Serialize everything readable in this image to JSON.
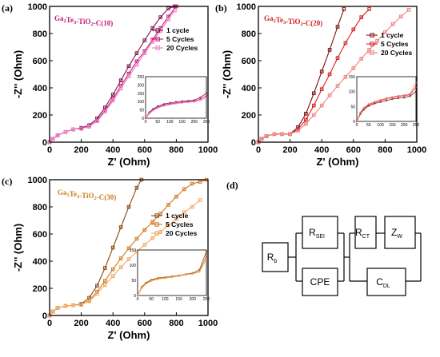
{
  "chart_data": [
    {
      "type": "line",
      "panel": "(a)",
      "sample": "Ga2Te3-TiO2-C(10)",
      "sample_parts": {
        "p1": "Ga",
        "s1": "2",
        "p2": "Te",
        "s2": "3",
        "p3": "-TiO",
        "s3": "2",
        "p4": "-C(10)"
      },
      "xlabel": "Z' (Ohm)",
      "ylabel": "-Z'' (Ohm)",
      "xlim": [
        0,
        1000
      ],
      "ylim": [
        0,
        1000
      ],
      "xticks": [
        0,
        200,
        400,
        600,
        800,
        1000
      ],
      "yticks": [
        0,
        200,
        400,
        600,
        800,
        1000
      ],
      "legend_position": "top-right",
      "series": [
        {
          "name": "1 cycle",
          "color": "#7b1450",
          "x": [
            0,
            20,
            50,
            100,
            150,
            200,
            250,
            300,
            350,
            400,
            450,
            500,
            550,
            600,
            650,
            700,
            750,
            790
          ],
          "y": [
            0,
            25,
            50,
            75,
            95,
            105,
            125,
            175,
            255,
            350,
            455,
            560,
            655,
            750,
            840,
            920,
            985,
            1000
          ]
        },
        {
          "name": "5 Cycles",
          "color": "#c21a74",
          "x": [
            0,
            20,
            50,
            100,
            150,
            200,
            250,
            300,
            350,
            400,
            450,
            500,
            550,
            600,
            650,
            700,
            750,
            800
          ],
          "y": [
            0,
            25,
            50,
            75,
            95,
            100,
            115,
            160,
            235,
            320,
            415,
            505,
            595,
            670,
            755,
            840,
            925,
            1000
          ]
        },
        {
          "name": "20 Cycles",
          "color": "#f07ac2",
          "x": [
            0,
            20,
            50,
            100,
            150,
            200,
            250,
            300,
            350,
            400,
            450,
            500,
            550,
            600,
            650,
            700,
            750,
            790
          ],
          "y": [
            0,
            25,
            50,
            75,
            95,
            100,
            115,
            155,
            225,
            305,
            395,
            485,
            570,
            655,
            740,
            820,
            905,
            970
          ]
        }
      ],
      "inset": {
        "xlim": [
          0,
          250
        ],
        "ylim": [
          0,
          250
        ],
        "xticks": [
          0,
          50,
          100,
          150,
          200,
          250
        ],
        "yticks": [
          0,
          50,
          100,
          150,
          200,
          250
        ],
        "series": [
          {
            "x": [
              0,
              15,
              30,
              50,
              75,
              100,
              125,
              150,
              175,
              200,
              225,
              250
            ],
            "y": [
              0,
              35,
              55,
              72,
              85,
              92,
              98,
              102,
              105,
              108,
              125,
              150
            ]
          },
          {
            "x": [
              0,
              15,
              30,
              50,
              75,
              100,
              125,
              150,
              175,
              200,
              225,
              250
            ],
            "y": [
              0,
              30,
              50,
              66,
              78,
              86,
              92,
              96,
              100,
              103,
              115,
              135
            ]
          },
          {
            "x": [
              0,
              15,
              30,
              50,
              75,
              100,
              125,
              150,
              175,
              200,
              225,
              250
            ],
            "y": [
              0,
              28,
              46,
              62,
              74,
              82,
              88,
              92,
              96,
              98,
              108,
              125
            ]
          }
        ]
      }
    },
    {
      "type": "line",
      "panel": "(b)",
      "sample": "Ga2Te3-TiO2-C(20)",
      "sample_parts": {
        "p1": "Ga",
        "s1": "2",
        "p2": "Te",
        "s2": "3",
        "p3": "-TiO",
        "s3": "2",
        "p4": "-C(20)"
      },
      "xlabel": "Z' (Ohm)",
      "ylabel": "-Z'' (Ohm)",
      "xlim": [
        0,
        1000
      ],
      "ylim": [
        0,
        1000
      ],
      "xticks": [
        0,
        200,
        400,
        600,
        800,
        1000
      ],
      "yticks": [
        0,
        200,
        400,
        600,
        800,
        1000
      ],
      "legend_position": "top-right",
      "series": [
        {
          "name": "1 cycle",
          "color": "#7a0f0f",
          "x": [
            0,
            20,
            50,
            100,
            150,
            200,
            250,
            300,
            350,
            400,
            450,
            500,
            540
          ],
          "y": [
            0,
            25,
            45,
            60,
            60,
            60,
            110,
            210,
            360,
            520,
            680,
            850,
            980
          ]
        },
        {
          "name": "5 Cycles",
          "color": "#d41f1f",
          "x": [
            0,
            20,
            50,
            100,
            150,
            200,
            250,
            300,
            350,
            400,
            450,
            500,
            550,
            600,
            650,
            700
          ],
          "y": [
            0,
            25,
            45,
            60,
            60,
            60,
            95,
            165,
            270,
            390,
            500,
            620,
            730,
            830,
            920,
            980
          ]
        },
        {
          "name": "20 Cycles",
          "color": "#f08080",
          "x": [
            0,
            20,
            50,
            100,
            150,
            200,
            250,
            300,
            350,
            400,
            450,
            500,
            550,
            600,
            650,
            700,
            750,
            800,
            850,
            900,
            950
          ],
          "y": [
            0,
            25,
            45,
            60,
            60,
            60,
            85,
            135,
            200,
            270,
            345,
            415,
            480,
            545,
            615,
            680,
            745,
            810,
            870,
            925,
            975
          ]
        }
      ],
      "inset": {
        "xlim": [
          0,
          250
        ],
        "ylim": [
          0,
          150
        ],
        "xticks": [
          0,
          50,
          100,
          150,
          200,
          250
        ],
        "yticks": [
          0,
          50,
          100,
          150
        ],
        "series": [
          {
            "x": [
              0,
              15,
              30,
              50,
              75,
              100,
              125,
              150,
              175,
              200,
              225,
              250
            ],
            "y": [
              0,
              25,
              40,
              52,
              60,
              65,
              70,
              75,
              78,
              80,
              85,
              100
            ]
          },
          {
            "x": [
              0,
              15,
              30,
              50,
              75,
              100,
              125,
              150,
              175,
              200,
              225,
              250
            ],
            "y": [
              0,
              28,
              44,
              56,
              64,
              70,
              76,
              80,
              84,
              86,
              90,
              115
            ]
          },
          {
            "x": [
              0,
              15,
              30,
              50,
              75,
              100,
              125,
              150,
              175,
              200,
              225,
              250
            ],
            "y": [
              0,
              30,
              46,
              58,
              66,
              72,
              78,
              82,
              86,
              88,
              92,
              130
            ]
          }
        ]
      }
    },
    {
      "type": "line",
      "panel": "(c)",
      "sample": "Ga2Te3-TiO2-C(30)",
      "sample_parts": {
        "p1": "Ga",
        "s1": "2",
        "p2": "Te",
        "s2": "3",
        "p3": "-TiO",
        "s3": "2",
        "p4": "-C(30)"
      },
      "xlabel": "Z' (Ohm)",
      "ylabel": "-Z'' (Ohm)",
      "xlim": [
        0,
        1000
      ],
      "ylim": [
        0,
        1000
      ],
      "xticks": [
        0,
        200,
        400,
        600,
        800,
        1000
      ],
      "yticks": [
        0,
        200,
        400,
        600,
        800,
        1000
      ],
      "legend_position": "top-right",
      "series": [
        {
          "name": "1 cycle",
          "color": "#8a4a12",
          "x": [
            0,
            20,
            50,
            100,
            150,
            200,
            250,
            300,
            350,
            400,
            450,
            500,
            550,
            580
          ],
          "y": [
            0,
            30,
            55,
            70,
            75,
            85,
            130,
            220,
            350,
            500,
            650,
            800,
            940,
            1000
          ]
        },
        {
          "name": "5 Cycles",
          "color": "#d07a1e",
          "x": [
            0,
            20,
            50,
            100,
            150,
            200,
            250,
            300,
            350,
            400,
            450,
            500,
            550,
            600,
            650,
            700,
            750,
            800,
            850,
            900,
            950,
            990
          ],
          "y": [
            0,
            30,
            55,
            70,
            75,
            80,
            110,
            175,
            255,
            340,
            420,
            495,
            565,
            630,
            690,
            750,
            815,
            875,
            930,
            970,
            985,
            1000
          ]
        },
        {
          "name": "20 Cycles",
          "color": "#f5a962",
          "x": [
            0,
            20,
            50,
            100,
            150,
            200,
            250,
            300,
            350,
            400,
            450,
            500,
            550,
            600,
            650,
            700,
            750,
            800,
            850,
            900,
            950
          ],
          "y": [
            0,
            30,
            55,
            70,
            75,
            80,
            105,
            160,
            225,
            290,
            355,
            415,
            470,
            520,
            570,
            615,
            665,
            710,
            760,
            800,
            850
          ]
        }
      ],
      "inset": {
        "xlim": [
          0,
          250
        ],
        "ylim": [
          0,
          150
        ],
        "xticks": [
          0,
          50,
          100,
          150,
          200,
          250
        ],
        "yticks": [
          0,
          50,
          100,
          150
        ],
        "series": [
          {
            "x": [
              0,
              15,
              30,
              50,
              75,
              100,
              125,
              150,
              175,
              200,
              225,
              250
            ],
            "y": [
              0,
              28,
              42,
              52,
              58,
              60,
              63,
              66,
              70,
              74,
              85,
              145
            ]
          },
          {
            "x": [
              0,
              15,
              30,
              50,
              75,
              100,
              125,
              150,
              175,
              200,
              225,
              250
            ],
            "y": [
              0,
              26,
              40,
              50,
              56,
              59,
              62,
              65,
              69,
              72,
              80,
              130
            ]
          },
          {
            "x": [
              0,
              15,
              30,
              50,
              75,
              100,
              125,
              150,
              175,
              200,
              225,
              250
            ],
            "y": [
              0,
              24,
              38,
              48,
              54,
              57,
              60,
              64,
              68,
              71,
              78,
              120
            ]
          }
        ]
      }
    }
  ],
  "circuit": {
    "panel": "(d)",
    "rb": {
      "main": "R",
      "sub": "b"
    },
    "rsei": {
      "main": "R",
      "sub": "SEI"
    },
    "cpe": {
      "main": "CPE",
      "sub": ""
    },
    "rct": {
      "main": "R",
      "sub": "CT"
    },
    "zw": {
      "main": "Z",
      "sub": "W"
    },
    "cdl": {
      "main": "C",
      "sub": "DL"
    }
  }
}
